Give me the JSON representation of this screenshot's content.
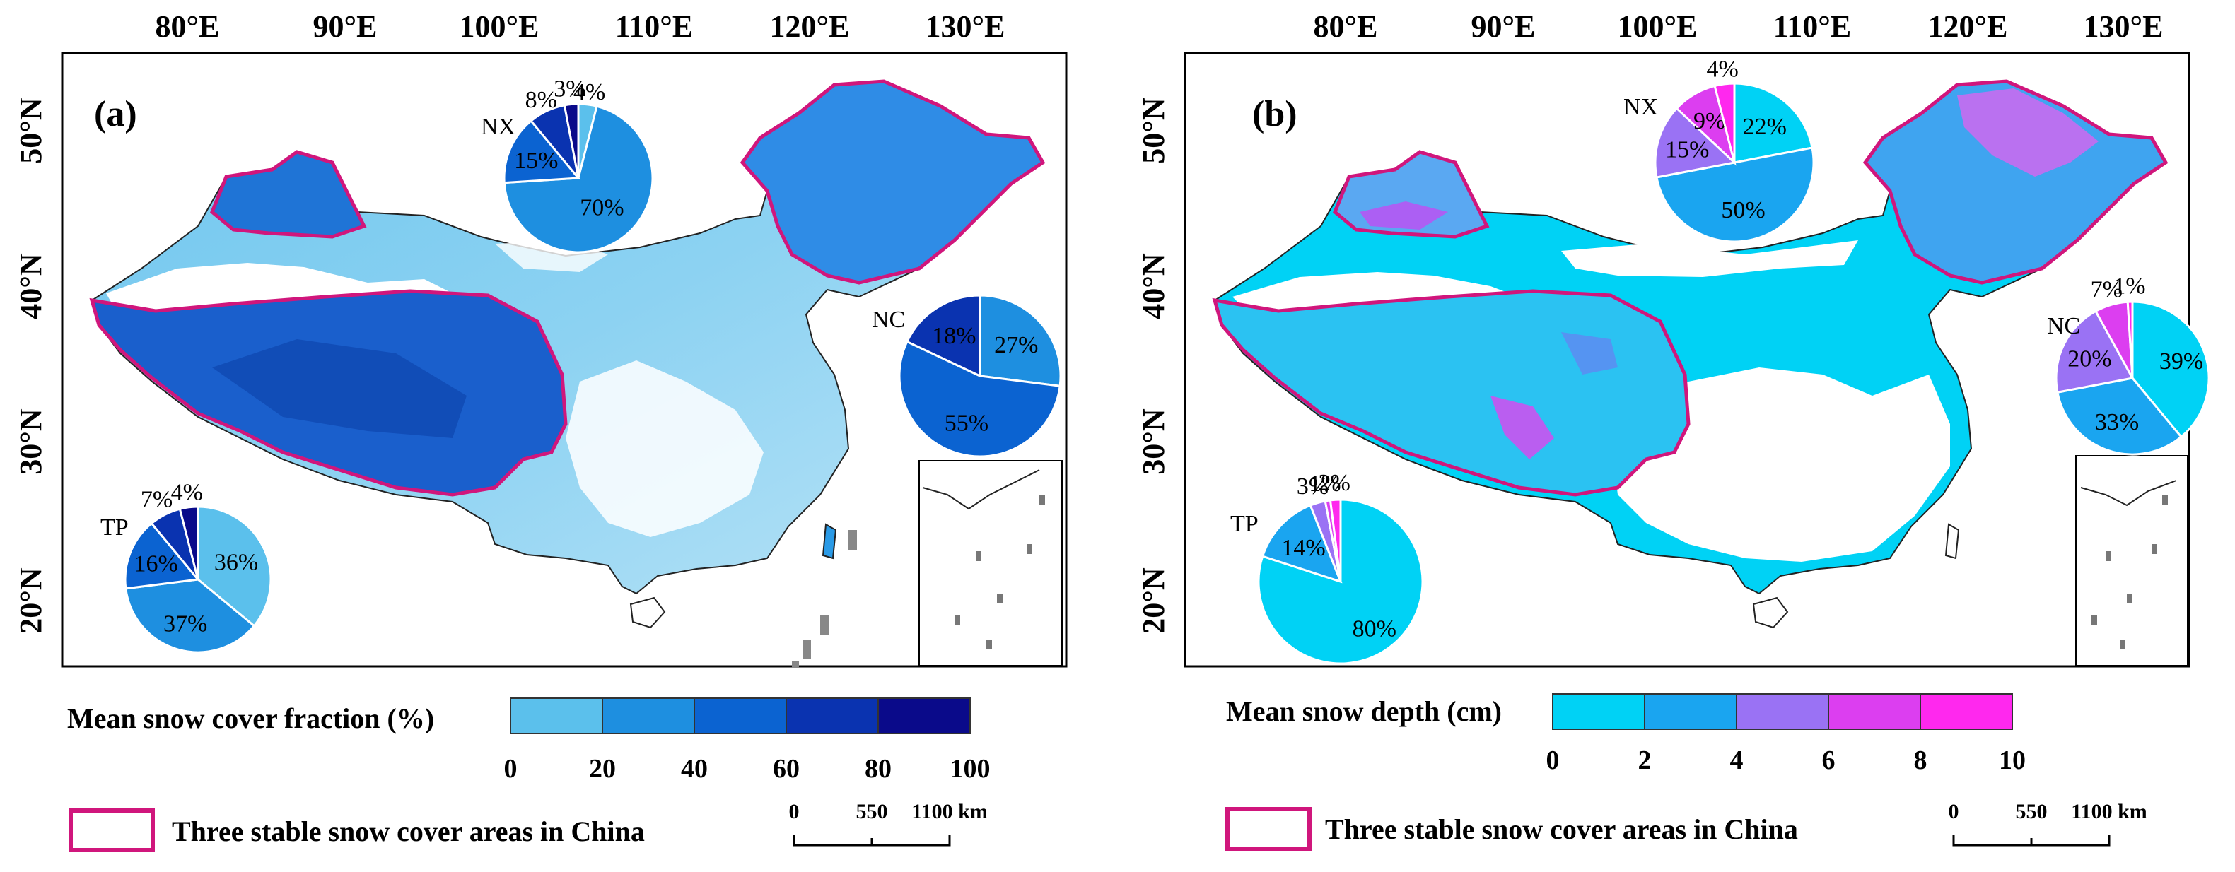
{
  "colors": {
    "boundary": "#d0167c",
    "fraction_scale": [
      "#5bc0ec",
      "#1e8fe0",
      "#0b63d1",
      "#0a33b0",
      "#0a0a8a"
    ],
    "depth_scale": [
      "#00d2f5",
      "#1aa5f0",
      "#9a72f4",
      "#dc3ef0",
      "#ff28ee"
    ]
  },
  "panel_a": {
    "label": "(a)",
    "lon_labels": [
      "80°E",
      "90°E",
      "100°E",
      "110°E",
      "120°E",
      "130°E"
    ],
    "lat_labels": [
      "50°N",
      "40°N",
      "30°N",
      "20°N"
    ],
    "pies": {
      "nx": {
        "name": "NX",
        "values": [
          4,
          70,
          15,
          8,
          3
        ],
        "labels": [
          "4%",
          "70%",
          "15%",
          "8%",
          "3%"
        ]
      },
      "nc": {
        "name": "NC",
        "values": [
          27,
          55,
          18
        ],
        "labels": [
          "27%",
          "55%",
          "18%"
        ]
      },
      "tp": {
        "name": "TP",
        "values": [
          36,
          37,
          16,
          7,
          4
        ],
        "labels": [
          "36%",
          "37%",
          "16%",
          "7%",
          "4%"
        ]
      }
    },
    "legend_title": "Mean snow cover fraction (%)",
    "legend_ticks": [
      "0",
      "20",
      "40",
      "60",
      "80",
      "100"
    ],
    "boundary_label": "Three stable snow cover areas in China",
    "scale_ticks": [
      "0",
      "550",
      "1100 km"
    ]
  },
  "panel_b": {
    "label": "(b)",
    "lon_labels": [
      "80°E",
      "90°E",
      "100°E",
      "110°E",
      "120°E",
      "130°E"
    ],
    "lat_labels": [
      "50°N",
      "40°N",
      "30°N",
      "20°N"
    ],
    "pies": {
      "nx": {
        "name": "NX",
        "values": [
          22,
          50,
          15,
          9,
          4
        ],
        "labels": [
          "22%",
          "50%",
          "15%",
          "9%",
          "4%"
        ]
      },
      "nc": {
        "name": "NC",
        "values": [
          39,
          33,
          20,
          7,
          1
        ],
        "labels": [
          "39%",
          "33%",
          "20%",
          "7%",
          "1%"
        ]
      },
      "tp": {
        "name": "TP",
        "values": [
          80,
          14,
          3,
          1,
          2
        ],
        "labels": [
          "80%",
          "14%",
          "3%",
          "1%",
          "2%"
        ]
      }
    },
    "legend_title": "Mean snow depth (cm)",
    "legend_ticks": [
      "0",
      "2",
      "4",
      "6",
      "8",
      "10"
    ],
    "boundary_label": "Three stable snow cover areas in China",
    "scale_ticks": [
      "0",
      "550",
      "1100 km"
    ]
  }
}
